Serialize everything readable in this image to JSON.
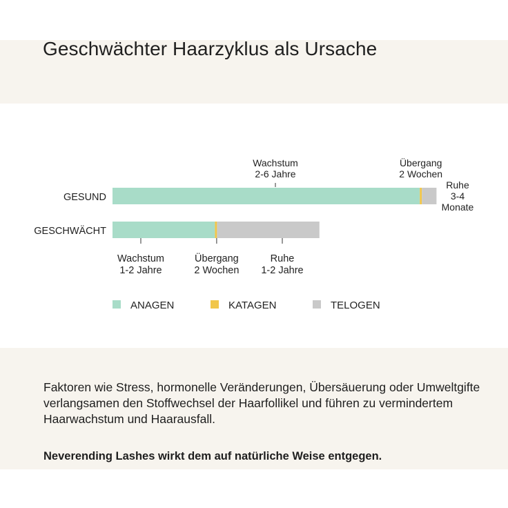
{
  "title": "Geschwächter Haarzyklus als Ursache",
  "colors": {
    "anagen": "#a8dcc8",
    "katagen": "#f1c64a",
    "telogen": "#c9c9c9",
    "band": "#f7f4ee"
  },
  "chart_data": {
    "type": "bar",
    "orientation": "horizontal",
    "stacked": true,
    "categories": [
      "GESUND",
      "GESCHWÄCHT"
    ],
    "series": [
      {
        "name": "ANAGEN",
        "values": [
          4.2,
          1.4
        ]
      },
      {
        "name": "KATAGEN",
        "values": [
          0.04,
          0.04
        ]
      },
      {
        "name": "TELOGEN",
        "values": [
          0.2,
          1.4
        ]
      }
    ],
    "legend_position": "bottom",
    "grid": false,
    "annotations_gesund": [
      {
        "lines": [
          "Wachstum",
          "2-6 Jahre"
        ]
      },
      {
        "lines": [
          "Übergang",
          "2 Wochen"
        ]
      },
      {
        "lines": [
          "Ruhe",
          "3-4",
          "Monate"
        ]
      }
    ],
    "annotations_geschwaecht": [
      {
        "lines": [
          "Wachstum",
          "1-2 Jahre"
        ]
      },
      {
        "lines": [
          "Übergang",
          "2 Wochen"
        ]
      },
      {
        "lines": [
          "Ruhe",
          "1-2 Jahre"
        ]
      }
    ]
  },
  "text": {
    "paragraph": "Faktoren wie Stress, hormonelle Veränderungen, Übersäuerung oder Umweltgifte verlangsamen den Stoffwechsel der Haarfollikel und führen zu vermindertem Haarwachstum und Haarausfall.",
    "tagline": "Neverending Lashes wirkt dem auf natürliche Weise entgegen."
  }
}
